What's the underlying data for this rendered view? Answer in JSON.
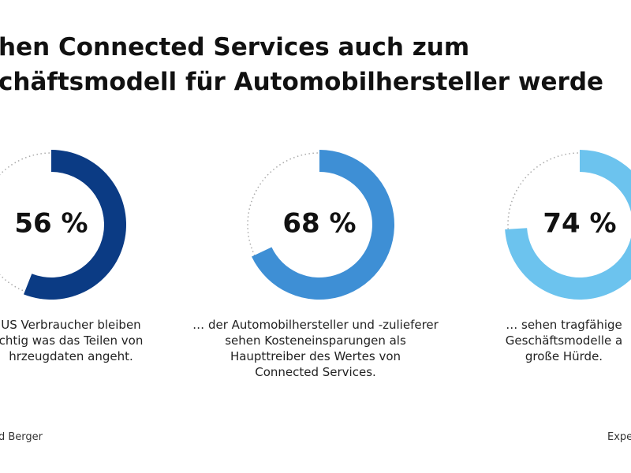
{
  "title_lines": [
    "hen Connected Services auch zum",
    "chäftsmodell für Automobilhersteller werde"
  ],
  "footer_left": "d Berger",
  "footer_right": "Expe",
  "chart_data": [
    {
      "type": "donut",
      "values": [
        56
      ],
      "value_labels": [
        "56 %"
      ],
      "color": "#0b3b84",
      "caption": [
        "US Verbraucher bleiben",
        "chtig was das Teilen von",
        "hrzeugdaten angeht."
      ]
    },
    {
      "type": "donut",
      "values": [
        68
      ],
      "value_labels": [
        "68 %"
      ],
      "color": "#3e8fd5",
      "caption": [
        "… der Automobilhersteller und -zulieferer",
        "sehen Kosteneinsparungen als",
        "Haupttreiber des Wertes von",
        "Connected Services."
      ]
    },
    {
      "type": "donut",
      "values": [
        74
      ],
      "value_labels": [
        "74 %"
      ],
      "color": "#6cc3ee",
      "caption": [
        "… sehen tragfähige",
        "Geschäftsmodelle a",
        "große Hürde."
      ]
    }
  ]
}
